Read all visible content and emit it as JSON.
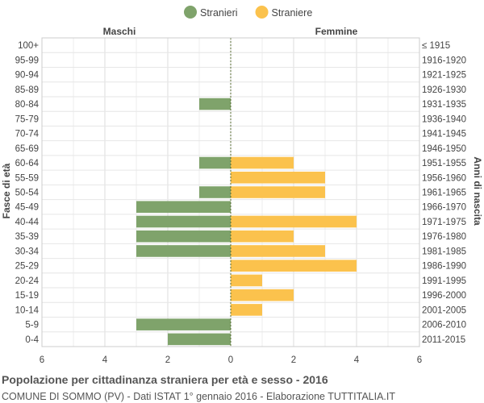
{
  "chart_data": {
    "type": "bar",
    "orientation": "horizontal-population-pyramid",
    "title": "Popolazione per cittadinanza straniera per età e sesso - 2016",
    "subtitle": "COMUNE DI SOMMO (PV) - Dati ISTAT 1° gennaio 2016 - Elaborazione TUTTITALIA.IT",
    "left_header": "Maschi",
    "right_header": "Femmine",
    "ylabel_left": "Fasce di età",
    "ylabel_right": "Anni di nascita",
    "legend_position": "top-center",
    "grid": true,
    "xlim": [
      -6,
      6
    ],
    "xticks": [
      -6,
      -4,
      -2,
      0,
      2,
      4,
      6
    ],
    "xtick_labels": [
      "6",
      "4",
      "2",
      "0",
      "2",
      "4",
      "6"
    ],
    "categories": [
      "100+",
      "95-99",
      "90-94",
      "85-89",
      "80-84",
      "75-79",
      "70-74",
      "65-69",
      "60-64",
      "55-59",
      "50-54",
      "45-49",
      "40-44",
      "35-39",
      "30-34",
      "25-29",
      "20-24",
      "15-19",
      "10-14",
      "5-9",
      "0-4"
    ],
    "birth_years": [
      "≤ 1915",
      "1916-1920",
      "1921-1925",
      "1926-1930",
      "1931-1935",
      "1936-1940",
      "1941-1945",
      "1946-1950",
      "1951-1955",
      "1956-1960",
      "1961-1965",
      "1966-1970",
      "1971-1975",
      "1976-1980",
      "1981-1985",
      "1986-1990",
      "1991-1995",
      "1996-2000",
      "2001-2005",
      "2006-2010",
      "2011-2015"
    ],
    "series": [
      {
        "name": "Stranieri",
        "side": "left",
        "color": "#7fa36b",
        "values": [
          0,
          0,
          0,
          0,
          1,
          0,
          0,
          0,
          1,
          0,
          1,
          3,
          3,
          3,
          3,
          0,
          0,
          0,
          0,
          3,
          2
        ]
      },
      {
        "name": "Straniere",
        "side": "right",
        "color": "#fbc24d",
        "values": [
          0,
          0,
          0,
          0,
          0,
          0,
          0,
          0,
          2,
          3,
          3,
          0,
          4,
          2,
          3,
          4,
          1,
          2,
          1,
          0,
          0
        ]
      }
    ]
  }
}
